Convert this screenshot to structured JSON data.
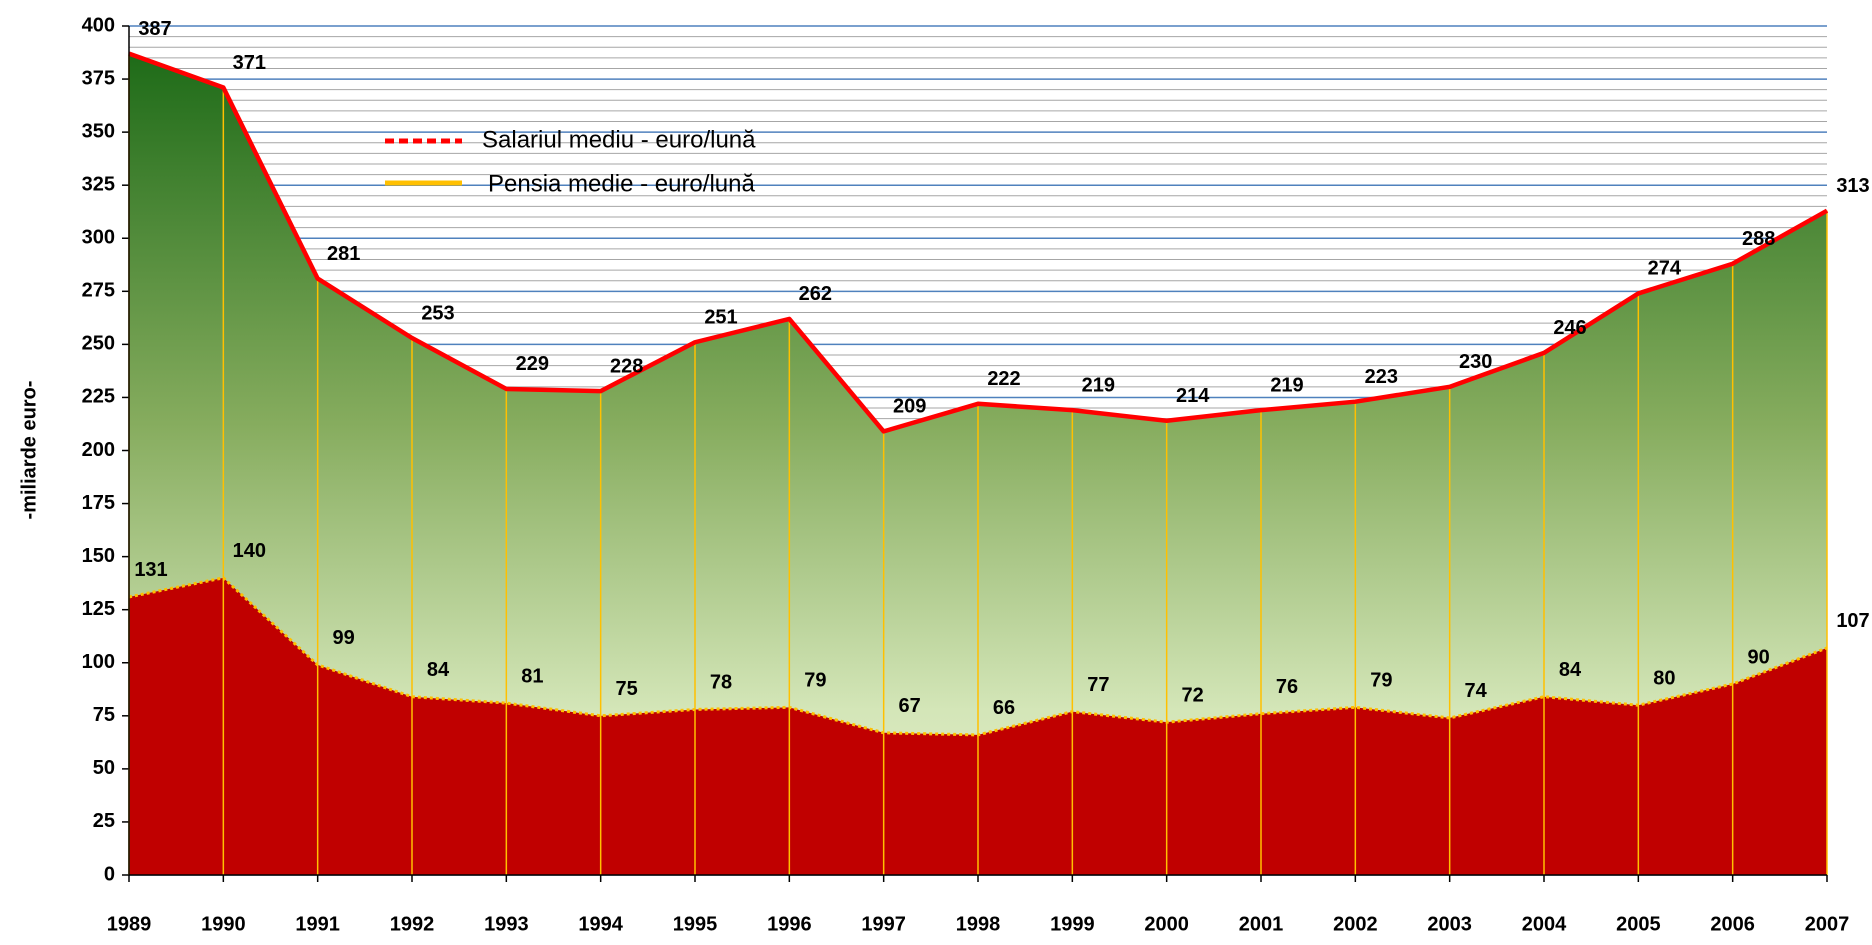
{
  "chart_data": {
    "type": "area",
    "y_label": "-miliarde euro-",
    "categories": [
      "1989",
      "1990",
      "1991",
      "1992",
      "1993",
      "1994",
      "1995",
      "1996",
      "1997",
      "1998",
      "1999",
      "2000",
      "2001",
      "2002",
      "2003",
      "2004",
      "2005",
      "2006",
      "2007"
    ],
    "series": [
      {
        "name": "Salariul mediu - euro/lună",
        "color": "#ff0000",
        "values": [
          387,
          371,
          281,
          253,
          229,
          228,
          251,
          262,
          209,
          222,
          219,
          214,
          219,
          223,
          230,
          246,
          274,
          288,
          313
        ]
      },
      {
        "name": "Pensia medie - euro/lună",
        "color": "#ffc000",
        "fill": "#c00000",
        "values": [
          131,
          140,
          99,
          84,
          81,
          75,
          78,
          79,
          67,
          66,
          77,
          72,
          76,
          79,
          74,
          84,
          80,
          90,
          107
        ]
      }
    ],
    "ylim": [
      0,
      400
    ],
    "yticks": [
      0,
      25,
      50,
      75,
      100,
      125,
      150,
      175,
      200,
      225,
      250,
      275,
      300,
      325,
      350,
      375,
      400
    ],
    "grid": true
  }
}
